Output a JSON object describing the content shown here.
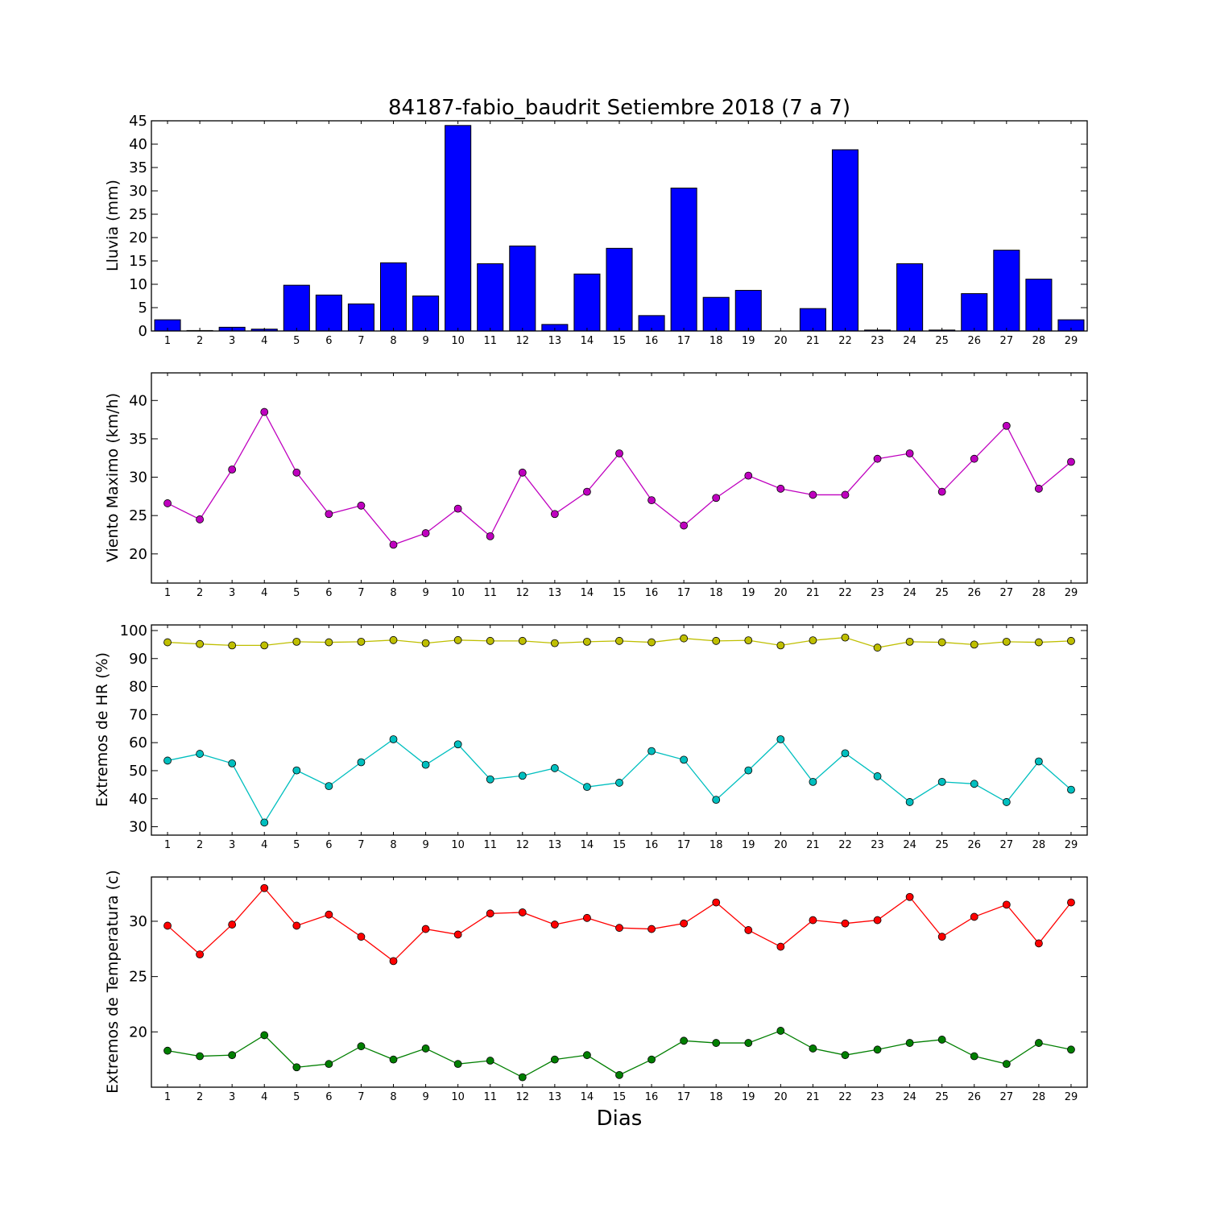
{
  "chart_data": [
    {
      "type": "bar",
      "title": "84187-fabio_baudrit Setiembre 2018  (7 a 7)",
      "xlabel": "",
      "ylabel": "Lluvia (mm)",
      "ylim": [
        0,
        45
      ],
      "yticks": [
        "0",
        "5",
        "10",
        "15",
        "20",
        "25",
        "30",
        "35",
        "40",
        "45"
      ],
      "categories": [
        "1",
        "2",
        "3",
        "4",
        "5",
        "6",
        "7",
        "8",
        "9",
        "10",
        "11",
        "12",
        "13",
        "14",
        "15",
        "16",
        "17",
        "18",
        "19",
        "20",
        "21",
        "22",
        "23",
        "24",
        "25",
        "26",
        "27",
        "28",
        "29"
      ],
      "values": [
        2.4,
        0.1,
        0.8,
        0.4,
        9.8,
        7.7,
        5.8,
        14.6,
        7.5,
        44.0,
        14.4,
        18.2,
        1.4,
        12.2,
        17.7,
        3.3,
        30.6,
        7.2,
        8.7,
        0.0,
        4.8,
        38.8,
        0.2,
        14.4,
        0.2,
        8.0,
        17.3,
        11.1,
        2.4
      ],
      "color": "#0000ff",
      "grid": false
    },
    {
      "type": "line",
      "xlabel": "",
      "ylabel": "Viento Maximo (km/h)",
      "ylim": [
        16.2,
        43.6
      ],
      "yticks": [
        "20",
        "25",
        "30",
        "35",
        "40"
      ],
      "x": [
        "1",
        "2",
        "3",
        "4",
        "5",
        "6",
        "7",
        "8",
        "9",
        "10",
        "11",
        "12",
        "13",
        "14",
        "15",
        "16",
        "17",
        "18",
        "19",
        "20",
        "21",
        "22",
        "23",
        "24",
        "25",
        "26",
        "27",
        "28",
        "29"
      ],
      "series": [
        {
          "color": "#bf00bf",
          "values": [
            26.6,
            24.5,
            31.0,
            38.5,
            30.6,
            25.2,
            26.3,
            21.2,
            22.7,
            25.9,
            22.3,
            30.6,
            25.2,
            28.1,
            33.1,
            27.0,
            23.7,
            27.3,
            30.2,
            28.5,
            27.7,
            27.7,
            32.4,
            33.1,
            28.1,
            32.4,
            36.7,
            28.5,
            32.0
          ]
        }
      ],
      "grid": false
    },
    {
      "type": "line",
      "xlabel": "",
      "ylabel": "Extremos de HR (%)",
      "ylim": [
        27,
        102
      ],
      "yticks": [
        "30",
        "40",
        "50",
        "60",
        "70",
        "80",
        "90",
        "100"
      ],
      "x": [
        "1",
        "2",
        "3",
        "4",
        "5",
        "6",
        "7",
        "8",
        "9",
        "10",
        "11",
        "12",
        "13",
        "14",
        "15",
        "16",
        "17",
        "18",
        "19",
        "20",
        "21",
        "22",
        "23",
        "24",
        "25",
        "26",
        "27",
        "28",
        "29"
      ],
      "series": [
        {
          "color": "#bfbf00",
          "values": [
            95.8,
            95.2,
            94.7,
            94.7,
            96.0,
            95.8,
            96.0,
            96.6,
            95.5,
            96.6,
            96.3,
            96.3,
            95.5,
            96.0,
            96.3,
            95.8,
            97.2,
            96.3,
            96.5,
            94.7,
            96.5,
            97.5,
            93.9,
            96.0,
            95.8,
            95.0,
            96.0,
            95.8,
            96.3
          ]
        },
        {
          "color": "#00bfbf",
          "values": [
            53.6,
            56.0,
            52.6,
            31.5,
            50.1,
            44.5,
            53.0,
            61.2,
            52.1,
            59.4,
            46.9,
            48.2,
            50.9,
            44.2,
            45.7,
            57.0,
            53.9,
            39.6,
            50.1,
            61.2,
            46.0,
            56.2,
            48.0,
            38.8,
            46.0,
            45.3,
            38.8,
            53.3,
            43.2
          ]
        }
      ],
      "grid": false
    },
    {
      "type": "line",
      "xlabel": "Dias",
      "ylabel": "Extremos de Temperatura (c)",
      "ylim": [
        15.0,
        34.0
      ],
      "yticks": [
        "20",
        "25",
        "30"
      ],
      "x": [
        "1",
        "2",
        "3",
        "4",
        "5",
        "6",
        "7",
        "8",
        "9",
        "10",
        "11",
        "12",
        "13",
        "14",
        "15",
        "16",
        "17",
        "18",
        "19",
        "20",
        "21",
        "22",
        "23",
        "24",
        "25",
        "26",
        "27",
        "28",
        "29"
      ],
      "series": [
        {
          "color": "#ff0000",
          "values": [
            29.6,
            27.0,
            29.7,
            33.0,
            29.6,
            30.6,
            28.6,
            26.4,
            29.3,
            28.8,
            30.7,
            30.8,
            29.7,
            30.3,
            29.4,
            29.3,
            29.8,
            31.7,
            29.2,
            27.7,
            30.1,
            29.8,
            30.1,
            32.2,
            28.6,
            30.4,
            31.5,
            28.0,
            31.7
          ]
        },
        {
          "color": "#007f00",
          "values": [
            18.3,
            17.8,
            17.9,
            19.7,
            16.8,
            17.1,
            18.7,
            17.5,
            18.5,
            17.1,
            17.4,
            15.9,
            17.5,
            17.9,
            16.1,
            17.5,
            19.2,
            19.0,
            19.0,
            20.1,
            18.5,
            17.9,
            18.4,
            19.0,
            19.3,
            17.8,
            17.1,
            19.0,
            18.4
          ]
        }
      ],
      "grid": false
    }
  ]
}
